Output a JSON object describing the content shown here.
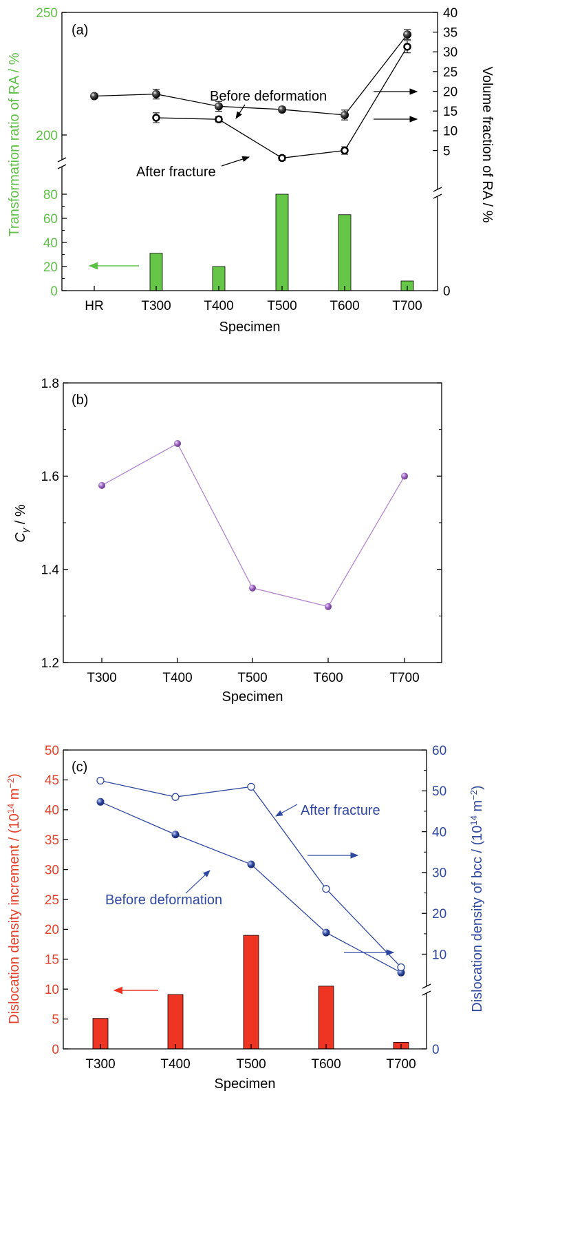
{
  "colors": {
    "axis": "#000000",
    "green": "#5ec046",
    "bar_green": "#66c648",
    "purple": "#b184cc",
    "purple_marker": "#9a5fc0",
    "blue": "#2e48a0",
    "red_text": "#e5402a",
    "bar_red": "#ee3524"
  },
  "chart_data": [
    {
      "id": "a",
      "type": "bar+line",
      "panel_label": "(a)",
      "categories": [
        "HR",
        "T300",
        "T400",
        "T500",
        "T600",
        "T700"
      ],
      "xlabel": "Specimen",
      "ylabel_left": "Transformation ratio of RA / %",
      "ylabel_right": "Volume fraction of RA / %",
      "left_axis_lower": {
        "range": [
          0,
          90
        ],
        "ticks": [
          "0",
          "20",
          "40",
          "60",
          "80"
        ],
        "tick_values": [
          0,
          20,
          40,
          60,
          80
        ]
      },
      "left_axis_upper": {
        "range": [
          190,
          250
        ],
        "ticks": [
          "200",
          "250"
        ],
        "tick_values": [
          200,
          250
        ]
      },
      "right_axis_lower": {
        "range": [
          0,
          25
        ],
        "ticks": [
          "0"
        ],
        "tick_values": [
          0
        ]
      },
      "right_axis_upper": {
        "range": [
          0,
          40
        ],
        "ticks": [
          "5",
          "10",
          "15",
          "20",
          "25",
          "30",
          "35",
          "40"
        ],
        "tick_values": [
          5,
          10,
          15,
          20,
          25,
          30,
          35,
          40
        ]
      },
      "bars": {
        "values": [
          0,
          31,
          20,
          80,
          63,
          8
        ]
      },
      "series": [
        {
          "name": "Before deformation",
          "values": [
            18.8,
            19.3,
            16.2,
            15.4,
            14,
            34.4
          ],
          "errors": [
            0,
            0.9,
            0.9,
            0.3,
            0.9,
            0.9
          ],
          "marker": "filled"
        },
        {
          "name": "After fracture",
          "values": [
            null,
            13.3,
            12.9,
            3.1,
            5,
            31.3
          ],
          "errors": [
            0,
            0.9,
            0.3,
            0.3,
            0.6,
            1.2
          ],
          "marker": "open"
        }
      ],
      "annotations": [
        "Before deformation",
        "After fracture"
      ]
    },
    {
      "id": "b",
      "type": "line",
      "panel_label": "(b)",
      "categories": [
        "T300",
        "T400",
        "T500",
        "T600",
        "T700"
      ],
      "xlabel": "Specimen",
      "ylabel_main": "C",
      "ylabel_sub": "γ",
      "ylabel_unit": " / %",
      "ylim": [
        1.2,
        1.8
      ],
      "y_ticks": [
        "1.2",
        "1.4",
        "1.6",
        "1.8"
      ],
      "y_tick_values": [
        1.2,
        1.4,
        1.6,
        1.8
      ],
      "values": [
        1.58,
        1.67,
        1.36,
        1.32,
        1.6
      ]
    },
    {
      "id": "c",
      "type": "bar+line",
      "panel_label": "(c)",
      "categories": [
        "T300",
        "T400",
        "T500",
        "T600",
        "T700"
      ],
      "xlabel": "Specimen",
      "ylabel_left_main": "Dislocation density increment / (10",
      "ylabel_left_exp": "14",
      "ylabel_left_unit": " m",
      "ylabel_left_exp2": "−2",
      "ylabel_left_close": ")",
      "ylabel_right_main": "Dislocation density of bcc / (10",
      "ylabel_right_exp": "14",
      "ylabel_right_unit": " m",
      "ylabel_right_exp2": "−2",
      "ylabel_right_close": ")",
      "left_axis": {
        "range": [
          0,
          50
        ],
        "ticks": [
          "0",
          "5",
          "10",
          "15",
          "20",
          "25",
          "30",
          "35",
          "40",
          "45",
          "50"
        ],
        "tick_values": [
          0,
          5,
          10,
          15,
          20,
          25,
          30,
          35,
          40,
          45,
          50
        ]
      },
      "right_axis_lower": {
        "range": [
          0,
          10
        ],
        "ticks": [
          "0"
        ],
        "tick_values": [
          0
        ]
      },
      "right_axis_upper": {
        "range": [
          0,
          60
        ],
        "ticks": [
          "10",
          "20",
          "30",
          "40",
          "50",
          "60"
        ],
        "tick_values": [
          10,
          20,
          30,
          40,
          50,
          60
        ]
      },
      "bars": {
        "values": [
          5.1,
          9.1,
          19,
          10.5,
          1.1
        ]
      },
      "series": [
        {
          "name": "Before deformation",
          "values": [
            47.3,
            39.3,
            32,
            15.3,
            5.5
          ],
          "marker": "filled"
        },
        {
          "name": "After fracture",
          "values": [
            52.5,
            48.5,
            51,
            26,
            6.8
          ],
          "marker": "open"
        }
      ],
      "annotations": [
        "After fracture",
        "Before deformation"
      ]
    }
  ]
}
